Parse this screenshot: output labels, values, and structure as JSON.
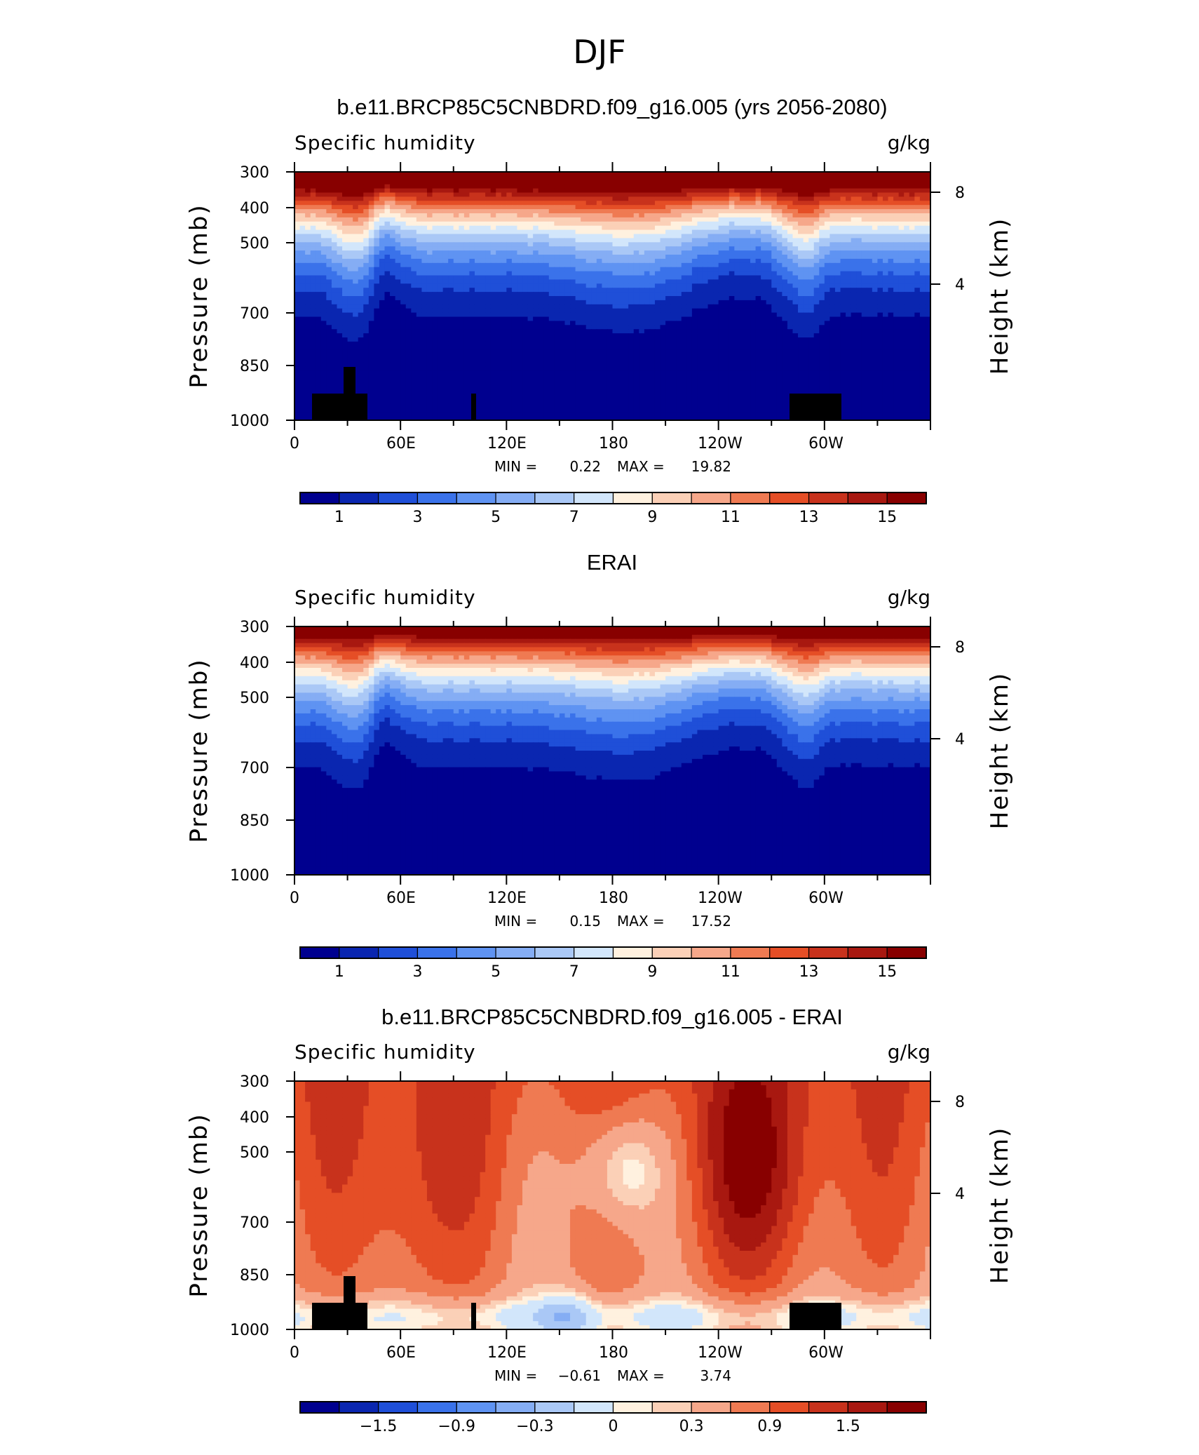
{
  "figure": {
    "title": "DJF"
  },
  "palette": {
    "levels": [
      "#00008f",
      "#0a26b0",
      "#1f4fd8",
      "#3a72ea",
      "#5f93f2",
      "#85adf4",
      "#aac8f6",
      "#d2e6fb",
      "#fff1df",
      "#fbd0b7",
      "#f6a78a",
      "#ef7a52",
      "#e54e26",
      "#c8321c",
      "#a81810",
      "#880000"
    ],
    "grid_mask": "#000000"
  },
  "chart_data": [
    {
      "type": "contour",
      "title": "b.e11.BRCP85C5CNBDRD.f09_g16.005 (yrs 2056-2080)",
      "variable": "Specific humidity",
      "units": "g/kg",
      "ylabel": "Pressure (mb)",
      "ylabel_right": "Height (km)",
      "x_ticks": [
        "0",
        "60E",
        "120E",
        "180",
        "120W",
        "60W"
      ],
      "y_ticks": [
        "300",
        "400",
        "500",
        "700",
        "850",
        "1000"
      ],
      "y_right_ticks": [
        "8",
        "4"
      ],
      "stats_min_label": "MIN =",
      "stats_min": "0.22",
      "stats_max_label": "MAX =",
      "stats_max": "19.82",
      "colorbar_labels": [
        "1",
        "3",
        "5",
        "7",
        "9",
        "11",
        "13",
        "15"
      ],
      "has_terrain_mask": true,
      "mode": "humidity",
      "model_variant": true
    },
    {
      "type": "contour",
      "title": "ERAI",
      "variable": "Specific humidity",
      "units": "g/kg",
      "ylabel": "Pressure (mb)",
      "ylabel_right": "Height (km)",
      "x_ticks": [
        "0",
        "60E",
        "120E",
        "180",
        "120W",
        "60W"
      ],
      "y_ticks": [
        "300",
        "400",
        "500",
        "700",
        "850",
        "1000"
      ],
      "y_right_ticks": [
        "8",
        "4"
      ],
      "stats_min_label": "MIN =",
      "stats_min": "0.15",
      "stats_max_label": "MAX =",
      "stats_max": "17.52",
      "colorbar_labels": [
        "1",
        "3",
        "5",
        "7",
        "9",
        "11",
        "13",
        "15"
      ],
      "has_terrain_mask": false,
      "mode": "humidity",
      "model_variant": false
    },
    {
      "type": "contour",
      "title": "b.e11.BRCP85C5CNBDRD.f09_g16.005 - ERAI",
      "variable": "Specific humidity",
      "units": "g/kg",
      "ylabel": "Pressure (mb)",
      "ylabel_right": "Height (km)",
      "x_ticks": [
        "0",
        "60E",
        "120E",
        "180",
        "120W",
        "60W"
      ],
      "y_ticks": [
        "300",
        "400",
        "500",
        "700",
        "850",
        "1000"
      ],
      "y_right_ticks": [
        "8",
        "4"
      ],
      "stats_min_label": "MIN =",
      "stats_min": "−0.61",
      "stats_max_label": "MAX =",
      "stats_max": "3.74",
      "colorbar_labels": [
        "−1.5",
        "−0.9",
        "−0.3",
        "0",
        "0.3",
        "0.9",
        "1.5"
      ],
      "has_terrain_mask": true,
      "mode": "difference",
      "model_variant": true
    }
  ]
}
